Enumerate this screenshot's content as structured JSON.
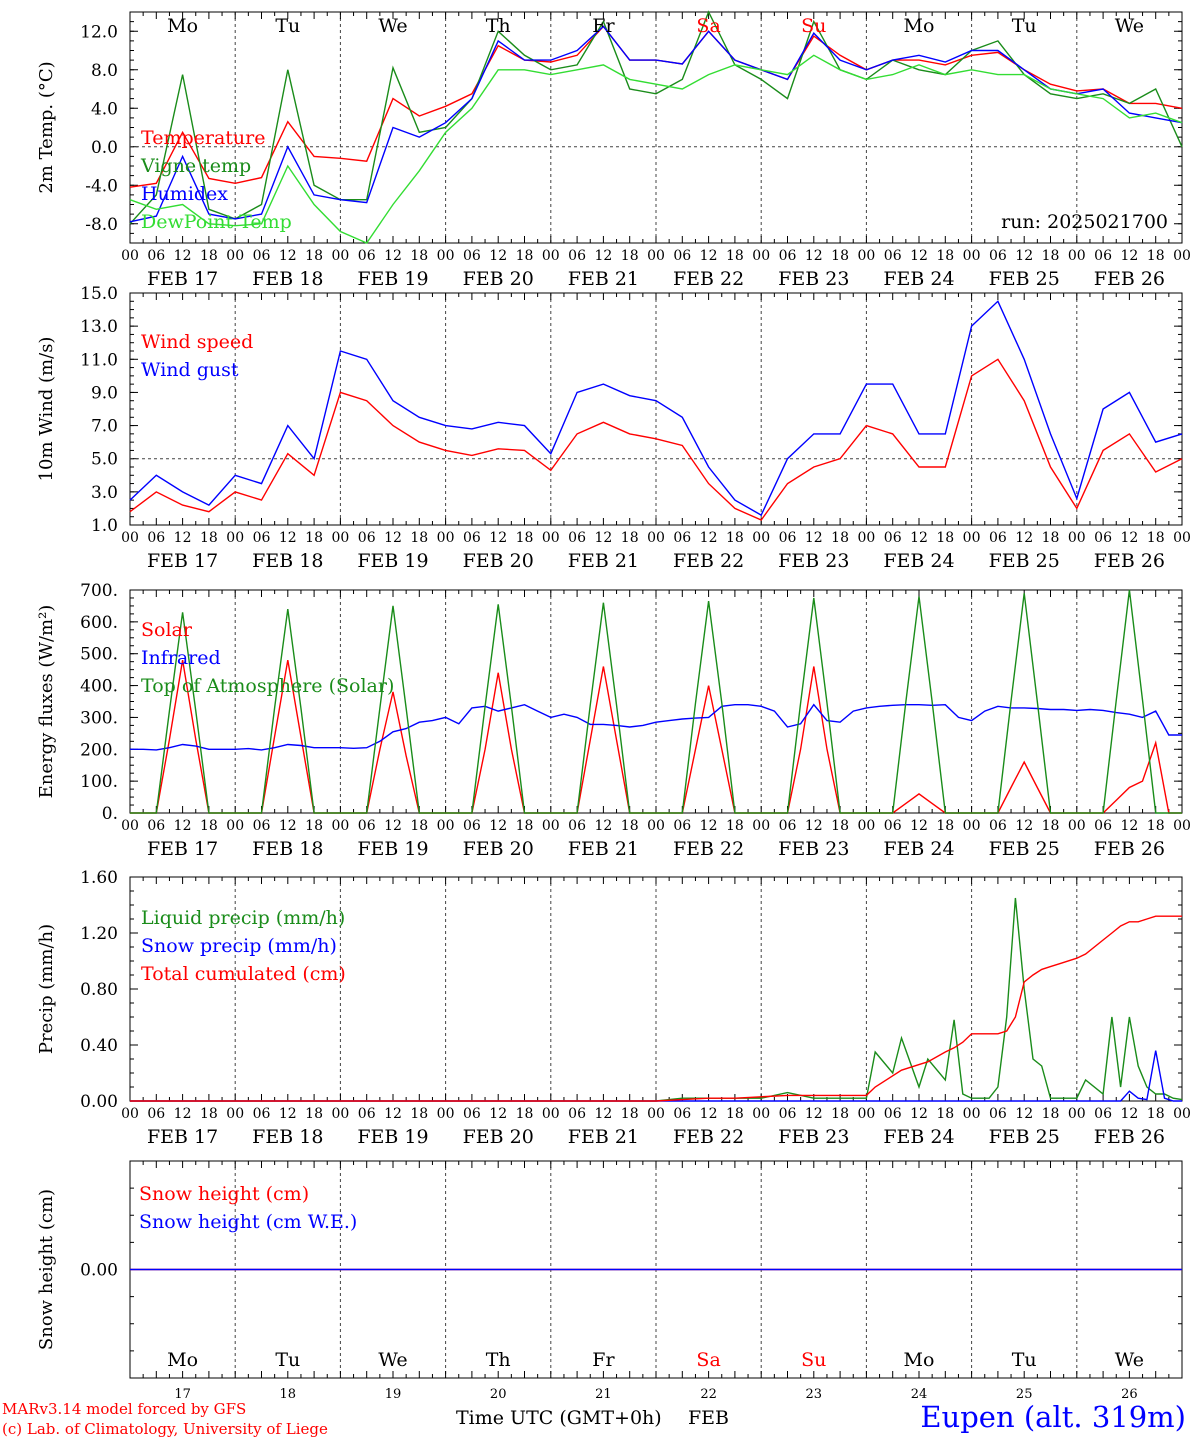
{
  "colors": {
    "red": "#ff0000",
    "darkgreen": "#1a8c1a",
    "blue": "#0000ff",
    "lightgreen": "#33dd33",
    "black": "#000000",
    "grey": "#444444"
  },
  "days": [
    "Mo",
    "Tu",
    "We",
    "Th",
    "Fr",
    "Sa",
    "Su",
    "Mo",
    "Tu",
    "We"
  ],
  "weekend_days": [
    "Sa",
    "Su"
  ],
  "date_labels": [
    "FEB 17",
    "FEB 18",
    "FEB 19",
    "FEB 20",
    "FEB 21",
    "FEB 22",
    "FEB 23",
    "FEB 24",
    "FEB 25",
    "FEB 26"
  ],
  "hour_ticks": [
    "00",
    "06",
    "12",
    "18"
  ],
  "bottom_day_numbers": [
    "17",
    "18",
    "19",
    "20",
    "21",
    "22",
    "23",
    "24",
    "25",
    "26"
  ],
  "footer": {
    "model": "MARv3.14 model forced by GFS",
    "lab": "(c) Lab. of Climatology, University of Liege",
    "time_label": "Time UTC (GMT+0h)",
    "month": "FEB",
    "station": "Eupen (alt. 319m)"
  },
  "chart_data": [
    {
      "type": "line",
      "ylabel": "2m Temp. (°C)",
      "ylim": [
        -10,
        14
      ],
      "yticks": [
        "12.0",
        "8.0",
        "4.0",
        "0.0",
        "-4.0",
        "-8.0"
      ],
      "ytick_values": [
        12,
        8,
        4,
        0,
        -4,
        -8
      ],
      "reference_line": 0,
      "annotation": "run: 2025021700",
      "x_hours": [
        0,
        6,
        12,
        18,
        24,
        30,
        36,
        42,
        48,
        54,
        60,
        66,
        72,
        78,
        84,
        90,
        96,
        102,
        108,
        114,
        120,
        126,
        132,
        138,
        144,
        150,
        156,
        162,
        168,
        174,
        180,
        186,
        192,
        198,
        204,
        210,
        216,
        222,
        228,
        234,
        240
      ],
      "series": [
        {
          "name": "Temperature",
          "color": "#ff0000",
          "values": [
            -4.2,
            -3.8,
            1.5,
            -3.3,
            -3.8,
            -3.2,
            2.6,
            -1.0,
            -1.2,
            -1.5,
            5.0,
            3.2,
            4.2,
            5.5,
            10.5,
            9.0,
            8.8,
            9.5,
            12.5,
            9.0,
            9.0,
            8.6,
            12.0,
            9.0,
            8.0,
            7.0,
            11.5,
            9.5,
            8.0,
            9.0,
            9.0,
            8.5,
            9.5,
            9.8,
            8.0,
            6.5,
            5.8,
            6.0,
            4.5,
            4.5,
            4.0
          ]
        },
        {
          "name": "Vigne temp",
          "color": "#1a8c1a",
          "values": [
            -8.0,
            -5.0,
            7.5,
            -6.5,
            -7.5,
            -6.0,
            8.0,
            -4.0,
            -5.5,
            -5.5,
            8.2,
            1.5,
            2.0,
            5.0,
            12.0,
            9.5,
            8.0,
            8.5,
            13.0,
            6.0,
            5.5,
            7.0,
            14.0,
            8.5,
            7.0,
            5.0,
            13.0,
            8.0,
            7.0,
            9.0,
            8.0,
            7.5,
            10.0,
            11.0,
            7.5,
            5.5,
            5.0,
            5.5,
            4.5,
            6.0,
            0.0
          ]
        },
        {
          "name": "Humidex",
          "color": "#0000ff",
          "values": [
            -7.8,
            -7.2,
            -1.0,
            -7.0,
            -7.5,
            -7.0,
            0.0,
            -5.0,
            -5.5,
            -5.8,
            2.0,
            1.0,
            2.5,
            5.0,
            11.0,
            9.0,
            9.0,
            10.0,
            12.5,
            9.0,
            9.0,
            8.6,
            12.0,
            9.0,
            8.0,
            7.0,
            11.8,
            9.0,
            8.0,
            9.0,
            9.5,
            8.8,
            10.0,
            10.0,
            8.0,
            6.0,
            5.5,
            6.0,
            3.5,
            3.0,
            2.5
          ]
        },
        {
          "name": "DewPoint Temp",
          "color": "#33dd33",
          "values": [
            -5.5,
            -6.5,
            -6.0,
            -8.0,
            -8.2,
            -8.0,
            -2.0,
            -6.0,
            -8.8,
            -10.0,
            -6.0,
            -2.5,
            1.5,
            4.0,
            8.0,
            8.0,
            7.5,
            8.0,
            8.5,
            7.0,
            6.5,
            6.0,
            7.5,
            8.5,
            8.0,
            7.5,
            9.5,
            8.0,
            7.0,
            7.5,
            8.5,
            7.5,
            8.0,
            7.5,
            7.5,
            6.0,
            5.5,
            5.0,
            3.0,
            3.5,
            2.5
          ]
        }
      ]
    },
    {
      "type": "line",
      "ylabel": "10m Wind (m/s)",
      "ylim": [
        1,
        15
      ],
      "yticks": [
        "15.0",
        "13.0",
        "11.0",
        "9.0",
        "7.0",
        "5.0",
        "3.0",
        "1.0"
      ],
      "ytick_values": [
        15,
        13,
        11,
        9,
        7,
        5,
        3,
        1
      ],
      "reference_line": 5,
      "x_hours": [
        0,
        6,
        12,
        18,
        24,
        30,
        36,
        42,
        48,
        54,
        60,
        66,
        72,
        78,
        84,
        90,
        96,
        102,
        108,
        114,
        120,
        126,
        132,
        138,
        144,
        150,
        156,
        162,
        168,
        174,
        180,
        186,
        192,
        198,
        204,
        210,
        216,
        222,
        228,
        234,
        240
      ],
      "series": [
        {
          "name": "Wind speed",
          "color": "#ff0000",
          "values": [
            1.8,
            3.0,
            2.2,
            1.8,
            3.0,
            2.5,
            5.3,
            4.0,
            9.0,
            8.5,
            7.0,
            6.0,
            5.5,
            5.2,
            5.6,
            5.5,
            4.3,
            6.5,
            7.2,
            6.5,
            6.2,
            5.8,
            3.5,
            2.0,
            1.3,
            3.5,
            4.5,
            5.0,
            7.0,
            6.5,
            4.5,
            4.5,
            10.0,
            11.0,
            8.5,
            4.5,
            2.0,
            5.5,
            6.5,
            4.2,
            5.0
          ]
        },
        {
          "name": "Wind gust",
          "color": "#0000ff",
          "values": [
            2.5,
            4.0,
            3.0,
            2.2,
            4.0,
            3.5,
            7.0,
            5.0,
            11.5,
            11.0,
            8.5,
            7.5,
            7.0,
            6.8,
            7.2,
            7.0,
            5.3,
            9.0,
            9.5,
            8.8,
            8.5,
            7.5,
            4.5,
            2.5,
            1.6,
            5.0,
            6.5,
            6.5,
            9.5,
            9.5,
            6.5,
            6.5,
            13.0,
            14.5,
            11.0,
            6.5,
            2.6,
            8.0,
            9.0,
            6.0,
            6.5
          ]
        }
      ]
    },
    {
      "type": "line",
      "ylabel": "Energy fluxes (W/m²)",
      "ylim": [
        0,
        700
      ],
      "yticks": [
        "700.",
        "600.",
        "500.",
        "400.",
        "300.",
        "200.",
        "100.",
        "0."
      ],
      "ytick_values": [
        700,
        600,
        500,
        400,
        300,
        200,
        100,
        0
      ],
      "x_hours": [
        0,
        3,
        6,
        9,
        12,
        15,
        18,
        21,
        24,
        27,
        30,
        33,
        36,
        39,
        42,
        45,
        48,
        51,
        54,
        57,
        60,
        63,
        66,
        69,
        72,
        75,
        78,
        81,
        84,
        87,
        90,
        93,
        96,
        99,
        102,
        105,
        108,
        111,
        114,
        117,
        120,
        123,
        126,
        129,
        132,
        135,
        138,
        141,
        144,
        147,
        150,
        153,
        156,
        159,
        162,
        165,
        168,
        171,
        174,
        177,
        180,
        183,
        186,
        189,
        192,
        195,
        198,
        201,
        204,
        207,
        210,
        213,
        216,
        219,
        222,
        225,
        228,
        231,
        234,
        237,
        240
      ],
      "series": [
        {
          "name": "Solar",
          "color": "#ff0000",
          "values": [
            0,
            0,
            0,
            230,
            480,
            230,
            0,
            0,
            0,
            0,
            0,
            240,
            480,
            240,
            0,
            0,
            0,
            0,
            0,
            200,
            380,
            180,
            0,
            0,
            0,
            0,
            0,
            200,
            440,
            200,
            0,
            0,
            0,
            0,
            0,
            230,
            460,
            230,
            0,
            0,
            0,
            0,
            0,
            200,
            400,
            200,
            0,
            0,
            0,
            0,
            0,
            200,
            460,
            200,
            0,
            0,
            0,
            0,
            0,
            30,
            60,
            30,
            0,
            0,
            0,
            0,
            0,
            80,
            160,
            80,
            0,
            0,
            0,
            0,
            0,
            40,
            80,
            100,
            220,
            0,
            0
          ]
        },
        {
          "name": "Infrared",
          "color": "#0000ff",
          "values": [
            200,
            200,
            198,
            205,
            215,
            210,
            200,
            200,
            200,
            202,
            198,
            205,
            215,
            212,
            205,
            205,
            205,
            203,
            205,
            225,
            255,
            265,
            285,
            290,
            300,
            280,
            330,
            335,
            320,
            330,
            340,
            320,
            300,
            310,
            300,
            278,
            278,
            275,
            270,
            275,
            285,
            290,
            295,
            298,
            300,
            335,
            340,
            340,
            335,
            320,
            270,
            280,
            340,
            290,
            285,
            320,
            330,
            335,
            338,
            340,
            340,
            338,
            340,
            300,
            290,
            320,
            335,
            330,
            330,
            328,
            325,
            325,
            322,
            325,
            322,
            315,
            310,
            300,
            320,
            245,
            245
          ]
        },
        {
          "name": "Top of Atmosphere (Solar)",
          "color": "#1a8c1a",
          "values": [
            0,
            0,
            0,
            320,
            630,
            320,
            0,
            0,
            0,
            0,
            0,
            330,
            640,
            330,
            0,
            0,
            0,
            0,
            0,
            330,
            650,
            330,
            0,
            0,
            0,
            0,
            0,
            335,
            655,
            335,
            0,
            0,
            0,
            0,
            0,
            340,
            660,
            340,
            0,
            0,
            0,
            0,
            0,
            345,
            665,
            345,
            0,
            0,
            0,
            0,
            0,
            345,
            675,
            345,
            0,
            0,
            0,
            0,
            0,
            350,
            680,
            350,
            0,
            0,
            0,
            0,
            0,
            350,
            690,
            350,
            0,
            0,
            0,
            0,
            0,
            355,
            700,
            355,
            0,
            0,
            0
          ]
        }
      ]
    },
    {
      "type": "line",
      "ylabel": "Precip (mm/h)",
      "ylim": [
        0,
        1.6
      ],
      "yticks": [
        "1.60",
        "1.20",
        "0.80",
        "0.40",
        "0.00"
      ],
      "ytick_values": [
        1.6,
        1.2,
        0.8,
        0.4,
        0
      ],
      "x_hours": [
        0,
        12,
        24,
        36,
        48,
        60,
        72,
        84,
        96,
        108,
        120,
        126,
        132,
        138,
        144,
        150,
        156,
        162,
        168,
        170,
        174,
        176,
        180,
        182,
        186,
        188,
        190,
        192,
        194,
        196,
        198,
        200,
        202,
        204,
        206,
        208,
        210,
        212,
        216,
        218,
        222,
        224,
        226,
        228,
        230,
        232,
        234,
        236,
        238,
        240
      ],
      "series": [
        {
          "name": "Liquid precip (mm/h)",
          "color": "#1a8c1a",
          "values": [
            0,
            0,
            0,
            0,
            0,
            0,
            0,
            0,
            0,
            0,
            0,
            0.02,
            0.02,
            0.02,
            0.02,
            0.06,
            0.02,
            0.02,
            0.02,
            0.35,
            0.2,
            0.45,
            0.1,
            0.3,
            0.15,
            0.58,
            0.05,
            0.02,
            0.02,
            0.02,
            0.1,
            0.6,
            1.45,
            0.8,
            0.3,
            0.25,
            0.02,
            0.02,
            0.02,
            0.15,
            0.05,
            0.6,
            0.1,
            0.6,
            0.25,
            0.1,
            0.05,
            0.05,
            0.02,
            0.01
          ]
        },
        {
          "name": "Snow precip (mm/h)",
          "color": "#0000ff",
          "values": [
            0,
            0,
            0,
            0,
            0,
            0,
            0,
            0,
            0,
            0,
            0,
            0,
            0,
            0,
            0,
            0,
            0,
            0,
            0,
            0,
            0,
            0,
            0,
            0,
            0,
            0,
            0,
            0,
            0,
            0,
            0,
            0,
            0,
            0,
            0,
            0,
            0,
            0,
            0,
            0,
            0,
            0,
            0,
            0.07,
            0.02,
            0.01,
            0.36,
            0.02,
            0,
            0
          ]
        },
        {
          "name": "Total cumulated (cm)",
          "color": "#ff0000",
          "values": [
            0,
            0,
            0,
            0,
            0,
            0,
            0,
            0,
            0,
            0,
            0,
            0.01,
            0.02,
            0.02,
            0.03,
            0.04,
            0.04,
            0.04,
            0.04,
            0.1,
            0.18,
            0.22,
            0.26,
            0.28,
            0.35,
            0.38,
            0.42,
            0.48,
            0.48,
            0.48,
            0.48,
            0.5,
            0.6,
            0.85,
            0.9,
            0.94,
            0.96,
            0.98,
            1.02,
            1.05,
            1.15,
            1.2,
            1.25,
            1.28,
            1.28,
            1.3,
            1.32,
            1.32,
            1.32,
            1.32
          ]
        }
      ]
    },
    {
      "type": "line",
      "ylabel": "Snow height (cm)",
      "ylim": [
        -1,
        1
      ],
      "yticks": [
        "0.00"
      ],
      "ytick_values": [
        0
      ],
      "x_hours": [
        0,
        240
      ],
      "series": [
        {
          "name": "Snow height (cm)",
          "color": "#ff0000",
          "values": [
            0,
            0
          ]
        },
        {
          "name": "Snow height (cm W.E.)",
          "color": "#0000ff",
          "values": [
            0,
            0
          ]
        }
      ]
    }
  ]
}
